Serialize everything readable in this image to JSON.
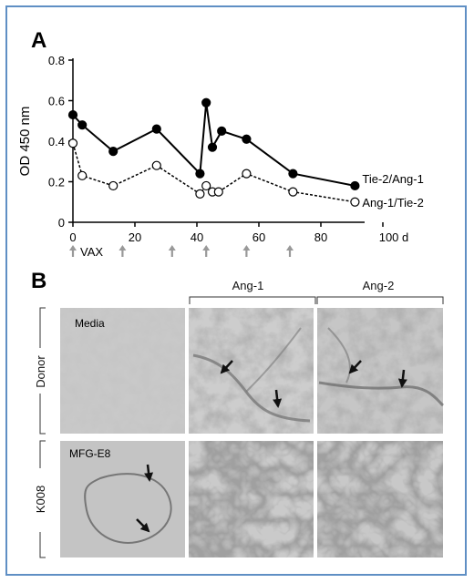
{
  "panel_a": {
    "label": "A",
    "chart_data": {
      "type": "line",
      "ylabel": "OD 450 nm",
      "x_unit_label": "100 d",
      "x_ticks": [
        "0",
        "20",
        "40",
        "60",
        "80"
      ],
      "y_ticks": [
        "0",
        "0.2",
        "0.4",
        "0.6",
        "0.8"
      ],
      "xlim": [
        0,
        100
      ],
      "ylim": [
        0,
        0.8
      ],
      "grid": false,
      "series": [
        {
          "name": "Tie-2/Ang-1",
          "marker": "filled-circle",
          "line": "solid",
          "x": [
            0,
            3,
            13,
            27,
            41,
            43,
            45,
            48,
            56,
            71,
            91
          ],
          "y": [
            0.53,
            0.48,
            0.35,
            0.46,
            0.24,
            0.59,
            0.37,
            0.45,
            0.41,
            0.24,
            0.18
          ]
        },
        {
          "name": "Ang-1/Tie-2",
          "marker": "open-circle",
          "line": "dashed",
          "x": [
            0,
            3,
            13,
            27,
            41,
            43,
            45,
            47,
            56,
            71,
            91
          ],
          "y": [
            0.39,
            0.23,
            0.18,
            0.28,
            0.14,
            0.18,
            0.15,
            0.15,
            0.24,
            0.15,
            0.1
          ]
        }
      ]
    },
    "vax_label": "VAX",
    "vax_days": [
      0,
      16,
      32,
      43,
      56,
      70
    ]
  },
  "panel_b": {
    "label": "B",
    "col_headers": [
      "Ang-1",
      "Ang-2"
    ],
    "row_labels": [
      "Donor",
      "K008"
    ],
    "cell_labels": {
      "donor_media": "Media",
      "k008_mfg": "MFG-E8"
    }
  }
}
